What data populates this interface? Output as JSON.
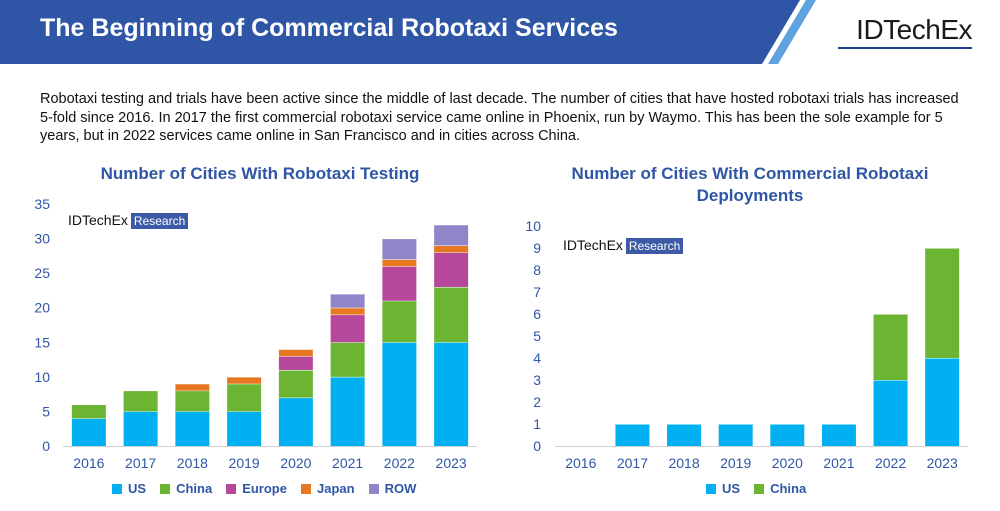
{
  "header": {
    "title": "The Beginning of Commercial Robotaxi Services",
    "brand": "IDTechEx"
  },
  "description": "Robotaxi testing and trials have been active since the middle of last decade. The number of cities that have hosted robotaxi trials has increased 5-fold since 2016. In 2017 the first commercial robotaxi service came online in Phoenix, run by Waymo. This has been the sole example for 5 years, but in 2022 services came online in San Francisco and in cities across China.",
  "watermark": {
    "brand": "IDTechEx",
    "tag": "Research"
  },
  "colors": {
    "US": "#00b0f0",
    "China": "#6bb533",
    "Europe": "#b5489a",
    "Japan": "#e87722",
    "ROW": "#8e86c8",
    "axis_text": "#2f56a6",
    "banner": "#2f56a6"
  },
  "chart_data": [
    {
      "type": "bar",
      "stacked": true,
      "title": "Number of Cities With Robotaxi Testing",
      "categories": [
        "2016",
        "2017",
        "2018",
        "2019",
        "2020",
        "2021",
        "2022",
        "2023"
      ],
      "series": [
        {
          "name": "US",
          "values": [
            4,
            5,
            5,
            5,
            7,
            10,
            15,
            15
          ]
        },
        {
          "name": "China",
          "values": [
            2,
            3,
            3,
            4,
            4,
            5,
            6,
            8
          ]
        },
        {
          "name": "Europe",
          "values": [
            0,
            0,
            0,
            0,
            2,
            4,
            5,
            5
          ]
        },
        {
          "name": "Japan",
          "values": [
            0,
            0,
            1,
            1,
            1,
            1,
            1,
            1
          ]
        },
        {
          "name": "ROW",
          "values": [
            0,
            0,
            0,
            0,
            0,
            2,
            3,
            3
          ]
        }
      ],
      "ylim": [
        0,
        35
      ],
      "yticks": [
        "0",
        "5",
        "10",
        "15",
        "20",
        "25",
        "30",
        "35"
      ],
      "legend": "bottom",
      "grid": false
    },
    {
      "type": "bar",
      "stacked": true,
      "title": "Number of Cities With Commercial Robotaxi Deployments",
      "categories": [
        "2016",
        "2017",
        "2018",
        "2019",
        "2020",
        "2021",
        "2022",
        "2023"
      ],
      "series": [
        {
          "name": "US",
          "values": [
            0,
            1,
            1,
            1,
            1,
            1,
            3,
            4
          ]
        },
        {
          "name": "China",
          "values": [
            0,
            0,
            0,
            0,
            0,
            0,
            3,
            5
          ]
        }
      ],
      "ylim": [
        0,
        10
      ],
      "yticks": [
        "0",
        "1",
        "2",
        "3",
        "4",
        "5",
        "6",
        "7",
        "8",
        "9",
        "10"
      ],
      "legend": "bottom",
      "grid": false
    }
  ]
}
